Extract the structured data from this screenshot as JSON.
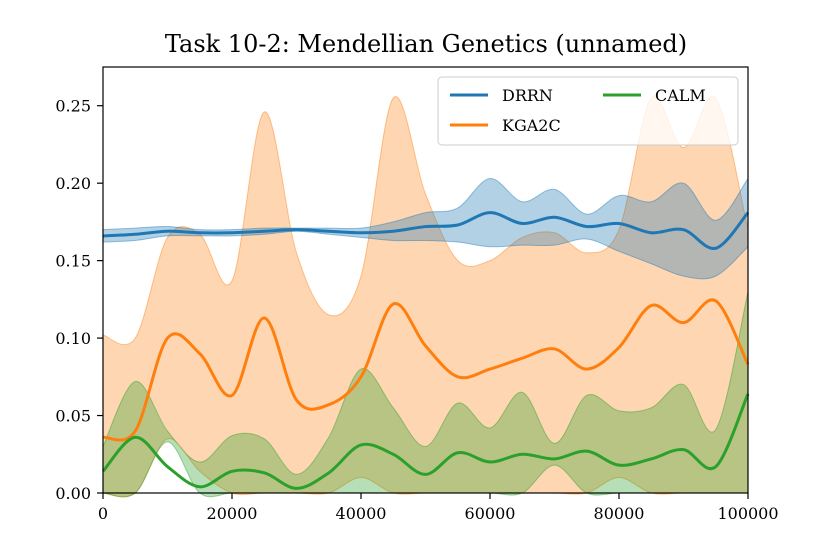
{
  "chart_data": {
    "type": "line",
    "title": "Task 10-2: Mendellian Genetics (unnamed)",
    "xlabel": "",
    "ylabel": "",
    "xlim": [
      0,
      100000
    ],
    "ylim": [
      0,
      0.275
    ],
    "x_ticks": [
      0,
      20000,
      40000,
      60000,
      80000,
      100000
    ],
    "x_tick_labels": [
      "0",
      "20000",
      "40000",
      "60000",
      "80000",
      "100000"
    ],
    "y_ticks": [
      0,
      0.05,
      0.1,
      0.15,
      0.2,
      0.25
    ],
    "y_tick_labels": [
      "0.00",
      "0.05",
      "0.10",
      "0.15",
      "0.20",
      "0.25"
    ],
    "grid": false,
    "legend_position": "top-right",
    "x": [
      0,
      5000,
      10000,
      15000,
      20000,
      25000,
      30000,
      35000,
      40000,
      45000,
      50000,
      55000,
      60000,
      65000,
      70000,
      75000,
      80000,
      85000,
      90000,
      95000,
      100000
    ],
    "series": [
      {
        "name": "DRRN",
        "color": "#1f77b4",
        "values": [
          0.166,
          0.167,
          0.169,
          0.168,
          0.168,
          0.169,
          0.17,
          0.169,
          0.168,
          0.169,
          0.172,
          0.173,
          0.181,
          0.174,
          0.178,
          0.172,
          0.174,
          0.168,
          0.17,
          0.158,
          0.181
        ],
        "upper": [
          0.17,
          0.171,
          0.172,
          0.17,
          0.17,
          0.171,
          0.171,
          0.171,
          0.171,
          0.175,
          0.181,
          0.184,
          0.203,
          0.188,
          0.196,
          0.18,
          0.192,
          0.188,
          0.2,
          0.176,
          0.203
        ],
        "lower": [
          0.162,
          0.163,
          0.166,
          0.166,
          0.166,
          0.167,
          0.169,
          0.167,
          0.165,
          0.163,
          0.163,
          0.162,
          0.159,
          0.16,
          0.16,
          0.164,
          0.156,
          0.148,
          0.14,
          0.14,
          0.159
        ]
      },
      {
        "name": "KGA2C",
        "color": "#ff7f0e",
        "values": [
          0.036,
          0.04,
          0.1,
          0.09,
          0.063,
          0.113,
          0.06,
          0.057,
          0.075,
          0.122,
          0.095,
          0.075,
          0.08,
          0.087,
          0.093,
          0.08,
          0.094,
          0.121,
          0.11,
          0.124,
          0.083
        ],
        "upper": [
          0.102,
          0.1,
          0.165,
          0.167,
          0.137,
          0.246,
          0.155,
          0.115,
          0.14,
          0.255,
          0.193,
          0.15,
          0.15,
          0.165,
          0.168,
          0.155,
          0.17,
          0.255,
          0.223,
          0.255,
          0.17
        ],
        "lower": [
          0.0,
          0.0,
          0.035,
          0.014,
          0.0,
          0.0,
          0.0,
          0.0,
          0.01,
          0.0,
          0.0,
          0.0,
          0.0,
          0.0,
          0.0,
          0.0,
          0.01,
          0.0,
          0.0,
          0.0,
          0.0
        ]
      },
      {
        "name": "CALM",
        "color": "#2ca02c",
        "values": [
          0.014,
          0.036,
          0.017,
          0.004,
          0.014,
          0.013,
          0.003,
          0.013,
          0.031,
          0.025,
          0.012,
          0.026,
          0.02,
          0.025,
          0.022,
          0.027,
          0.018,
          0.022,
          0.028,
          0.017,
          0.064
        ],
        "upper": [
          0.03,
          0.072,
          0.04,
          0.02,
          0.037,
          0.035,
          0.012,
          0.036,
          0.08,
          0.055,
          0.03,
          0.058,
          0.042,
          0.065,
          0.032,
          0.063,
          0.053,
          0.055,
          0.07,
          0.041,
          0.13
        ],
        "lower": [
          0.0,
          0.0,
          0.033,
          0.0,
          0.0,
          0.0,
          0.0,
          0.0,
          0.0,
          0.0,
          0.0,
          0.0,
          0.0,
          0.0,
          0.018,
          0.0,
          0.0,
          0.0,
          0.0,
          0.0,
          0.0
        ]
      }
    ]
  }
}
